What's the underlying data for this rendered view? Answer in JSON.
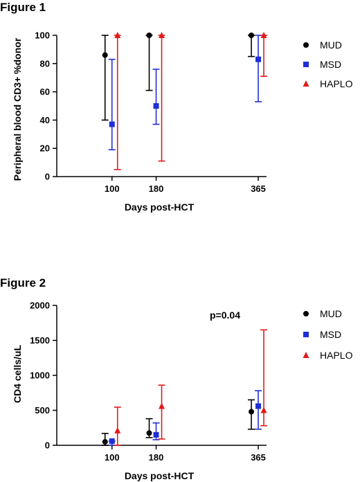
{
  "chart_data": [
    {
      "type": "scatter",
      "title": "Figure 1",
      "xlabel": "Days post-HCT",
      "ylabel": "Peripheral blood CD3+ %donor",
      "x_categories": [
        "100",
        "180",
        "365"
      ],
      "x_values": [
        100,
        180,
        365
      ],
      "xlim": [
        0,
        380
      ],
      "ylim": [
        0,
        100
      ],
      "y_ticks": [
        0,
        20,
        40,
        60,
        80,
        100
      ],
      "legend_position": "right",
      "series": [
        {
          "name": "MUD",
          "color": "#000000",
          "marker": "circle",
          "points": [
            {
              "x": 100,
              "y": 86,
              "low": 40,
              "high": 100
            },
            {
              "x": 180,
              "y": 100,
              "low": 61,
              "high": 100
            },
            {
              "x": 365,
              "y": 100,
              "low": 85,
              "high": 100
            }
          ]
        },
        {
          "name": "MSD",
          "color": "#1f2fd6",
          "marker": "square",
          "points": [
            {
              "x": 100,
              "y": 37,
              "low": 19,
              "high": 83
            },
            {
              "x": 180,
              "y": 50,
              "low": 37,
              "high": 76
            },
            {
              "x": 365,
              "y": 83,
              "low": 53,
              "high": 100
            }
          ]
        },
        {
          "name": "HAPLO",
          "color": "#e01b1b",
          "marker": "triangle",
          "points": [
            {
              "x": 100,
              "y": 100,
              "low": 5,
              "high": 100
            },
            {
              "x": 180,
              "y": 100,
              "low": 11,
              "high": 100
            },
            {
              "x": 365,
              "y": 100,
              "low": 71,
              "high": 100
            }
          ]
        }
      ]
    },
    {
      "type": "scatter",
      "title": "Figure 2",
      "xlabel": "Days post-HCT",
      "ylabel": "CD4 cells/uL",
      "annotation": "p=0.04",
      "x_categories": [
        "100",
        "180",
        "365"
      ],
      "x_values": [
        100,
        180,
        365
      ],
      "xlim": [
        0,
        380
      ],
      "ylim": [
        0,
        2000
      ],
      "y_ticks": [
        0,
        500,
        1000,
        1500,
        2000
      ],
      "legend_position": "right",
      "series": [
        {
          "name": "MUD",
          "color": "#000000",
          "marker": "circle",
          "points": [
            {
              "x": 100,
              "y": 50,
              "low": 0,
              "high": 170
            },
            {
              "x": 180,
              "y": 175,
              "low": 110,
              "high": 380
            },
            {
              "x": 365,
              "y": 480,
              "low": 230,
              "high": 650
            }
          ]
        },
        {
          "name": "MSD",
          "color": "#1f2fd6",
          "marker": "square",
          "points": [
            {
              "x": 100,
              "y": 60,
              "low": 0,
              "high": 60
            },
            {
              "x": 180,
              "y": 150,
              "low": 80,
              "high": 320
            },
            {
              "x": 365,
              "y": 560,
              "low": 230,
              "high": 780
            }
          ]
        },
        {
          "name": "HAPLO",
          "color": "#e01b1b",
          "marker": "triangle",
          "points": [
            {
              "x": 100,
              "y": 210,
              "low": 0,
              "high": 545
            },
            {
              "x": 180,
              "y": 560,
              "low": 90,
              "high": 860
            },
            {
              "x": 365,
              "y": 500,
              "low": 280,
              "high": 1650
            }
          ]
        }
      ]
    }
  ]
}
